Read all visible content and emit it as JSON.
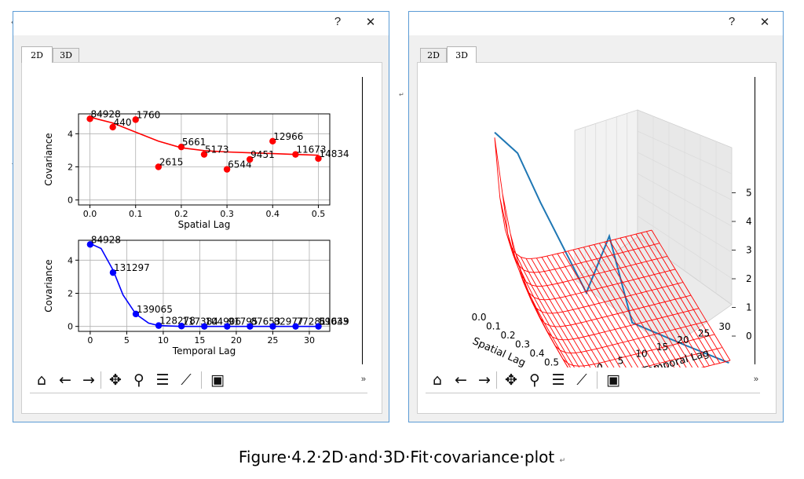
{
  "window_left": {
    "help_glyph": "?",
    "close_glyph": "✕",
    "tabs": [
      {
        "label": "2D",
        "active": true
      },
      {
        "label": "3D",
        "active": false
      }
    ],
    "toolbar": {
      "icons": [
        "home-icon",
        "back-icon",
        "forward-icon",
        "pan-icon",
        "zoom-icon",
        "configure-subplots-icon",
        "edit-axis-icon",
        "save-icon"
      ],
      "glyphs": [
        "⌂",
        "←",
        "→",
        "✥",
        "⚲",
        "☰",
        "⟋",
        "▣"
      ],
      "more": "»"
    }
  },
  "window_right": {
    "help_glyph": "?",
    "close_glyph": "✕",
    "tabs": [
      {
        "label": "2D",
        "active": false
      },
      {
        "label": "3D",
        "active": true
      }
    ],
    "toolbar": {
      "icons": [
        "home-icon",
        "back-icon",
        "forward-icon",
        "pan-icon",
        "zoom-icon",
        "configure-subplots-icon",
        "edit-axis-icon",
        "save-icon"
      ],
      "glyphs": [
        "⌂",
        "←",
        "→",
        "✥",
        "⚲",
        "☰",
        "⟋",
        "▣"
      ],
      "more": "»"
    }
  },
  "colors": {
    "red_series": "#ff0000",
    "blue_series": "#0000ff",
    "surface_line": "#1f77b4",
    "window_border": "#5b9bd5"
  },
  "chart_data": [
    {
      "type": "scatter",
      "xlabel": "Spatial Lag",
      "ylabel": "Covariance",
      "xlim": [
        -0.025,
        0.525
      ],
      "ylim": [
        -0.3,
        5.2
      ],
      "xticks": [
        "0.0",
        "0.1",
        "0.2",
        "0.3",
        "0.4",
        "0.5"
      ],
      "yticks": [
        "0",
        "2",
        "4"
      ],
      "grid": true,
      "series": [
        {
          "style": "points",
          "color": "#ff0000",
          "points": [
            {
              "x": 0.0,
              "y": 4.9,
              "label": "84928"
            },
            {
              "x": 0.05,
              "y": 4.4,
              "label": "440"
            },
            {
              "x": 0.1,
              "y": 4.85,
              "label": "1760"
            },
            {
              "x": 0.15,
              "y": 2.0,
              "label": "2615"
            },
            {
              "x": 0.2,
              "y": 3.2,
              "label": "5661"
            },
            {
              "x": 0.25,
              "y": 2.75,
              "label": "5173"
            },
            {
              "x": 0.3,
              "y": 1.85,
              "label": "6544"
            },
            {
              "x": 0.35,
              "y": 2.45,
              "label": "9451"
            },
            {
              "x": 0.4,
              "y": 3.55,
              "label": "12966"
            },
            {
              "x": 0.45,
              "y": 2.75,
              "label": "11673"
            },
            {
              "x": 0.5,
              "y": 2.5,
              "label": "14834"
            }
          ]
        },
        {
          "style": "curve",
          "color": "#ff0000",
          "points": [
            [
              0.0,
              5.0
            ],
            [
              0.05,
              4.65
            ],
            [
              0.1,
              4.1
            ],
            [
              0.15,
              3.55
            ],
            [
              0.2,
              3.15
            ],
            [
              0.25,
              2.98
            ],
            [
              0.3,
              2.9
            ],
            [
              0.35,
              2.85
            ],
            [
              0.4,
              2.8
            ],
            [
              0.45,
              2.75
            ],
            [
              0.5,
              2.7
            ]
          ]
        }
      ]
    },
    {
      "type": "scatter",
      "xlabel": "Temporal Lag",
      "ylabel": "Covariance",
      "xlim": [
        -1.6,
        32.8
      ],
      "ylim": [
        -0.3,
        5.2
      ],
      "xticks": [
        "0",
        "5",
        "10",
        "15",
        "20",
        "25",
        "30"
      ],
      "yticks": [
        "0",
        "2",
        "4"
      ],
      "grid": true,
      "series": [
        {
          "style": "points",
          "color": "#0000ff",
          "points": [
            {
              "x": 0.0,
              "y": 4.95,
              "label": "84928"
            },
            {
              "x": 3.125,
              "y": 3.25,
              "label": "131297"
            },
            {
              "x": 6.25,
              "y": 0.75,
              "label": "139065"
            },
            {
              "x": 9.375,
              "y": 0.05,
              "label": "128278"
            },
            {
              "x": 12.5,
              "y": 0.02,
              "label": "117384"
            },
            {
              "x": 15.625,
              "y": 0.0,
              "label": "104906"
            },
            {
              "x": 18.75,
              "y": 0.0,
              "label": "91795"
            },
            {
              "x": 21.875,
              "y": 0.0,
              "label": "87653"
            },
            {
              "x": 25.0,
              "y": 0.0,
              "label": "82977"
            },
            {
              "x": 28.125,
              "y": 0.0,
              "label": "77281"
            },
            {
              "x": 31.25,
              "y": 0.0,
              "label": "61649"
            }
          ],
          "overflow_labels": [
            "59033"
          ]
        },
        {
          "style": "curve",
          "color": "#0000ff",
          "points": [
            [
              0,
              5.0
            ],
            [
              1.5,
              4.7
            ],
            [
              3.125,
              3.4
            ],
            [
              4.5,
              1.9
            ],
            [
              6.25,
              0.75
            ],
            [
              8,
              0.2
            ],
            [
              9.375,
              0.05
            ],
            [
              12.5,
              0.0
            ],
            [
              20,
              0.0
            ],
            [
              31.25,
              0.0
            ]
          ]
        }
      ]
    },
    {
      "type": "surface3d",
      "xlabel": "Spatial Lag",
      "ylabel": "Temporal Lag",
      "xticks": [
        "0.0",
        "0.1",
        "0.2",
        "0.3",
        "0.4",
        "0.5"
      ],
      "yticks": [
        "0",
        "5",
        "10",
        "15",
        "20",
        "25",
        "30"
      ],
      "zticks": [
        "0",
        "1",
        "2",
        "3",
        "4",
        "5"
      ],
      "zlim": [
        0,
        5
      ],
      "surface_color": "#ff0000",
      "empirical_color": "#1f77b4"
    }
  ],
  "caption": "Figure·4.2·2D·and·3D·Fit·covariance·plot",
  "paragraph_marks": [
    "↵",
    "↵",
    "↵",
    "↵"
  ]
}
